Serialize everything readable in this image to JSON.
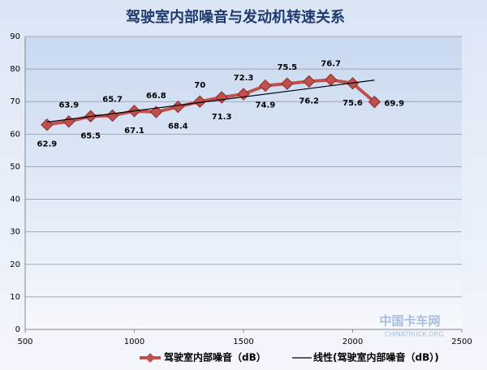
{
  "chart_data": {
    "type": "line",
    "title": "驾驶室内部噪音与发动机转速关系",
    "x": [
      600,
      700,
      800,
      900,
      1000,
      1100,
      1200,
      1300,
      1400,
      1500,
      1600,
      1700,
      1800,
      1900,
      2000,
      2100
    ],
    "series": [
      {
        "name": "驾驶室内部噪音（dB）",
        "color": "#c0504d",
        "values": [
          62.9,
          63.9,
          65.5,
          65.7,
          67.1,
          66.8,
          68.4,
          70,
          71.3,
          72.3,
          74.9,
          75.5,
          76.2,
          76.7,
          75.6,
          69.9
        ]
      }
    ],
    "trendline": {
      "name": "线性(驾驶室内部噪音（dB）)",
      "color": "#000000",
      "x": [
        600,
        2100
      ],
      "values": [
        63.7,
        76.6
      ]
    },
    "xlim": [
      500,
      2500
    ],
    "xticks": [
      500,
      1000,
      1500,
      2000,
      2500
    ],
    "ylim": [
      0,
      90
    ],
    "yticks": [
      0,
      10,
      20,
      30,
      40,
      50,
      60,
      70,
      80,
      90
    ],
    "grid": true,
    "legend": "bottom",
    "watermark": [
      "中国卡车网",
      "CHINATRUCK.ORG"
    ]
  }
}
